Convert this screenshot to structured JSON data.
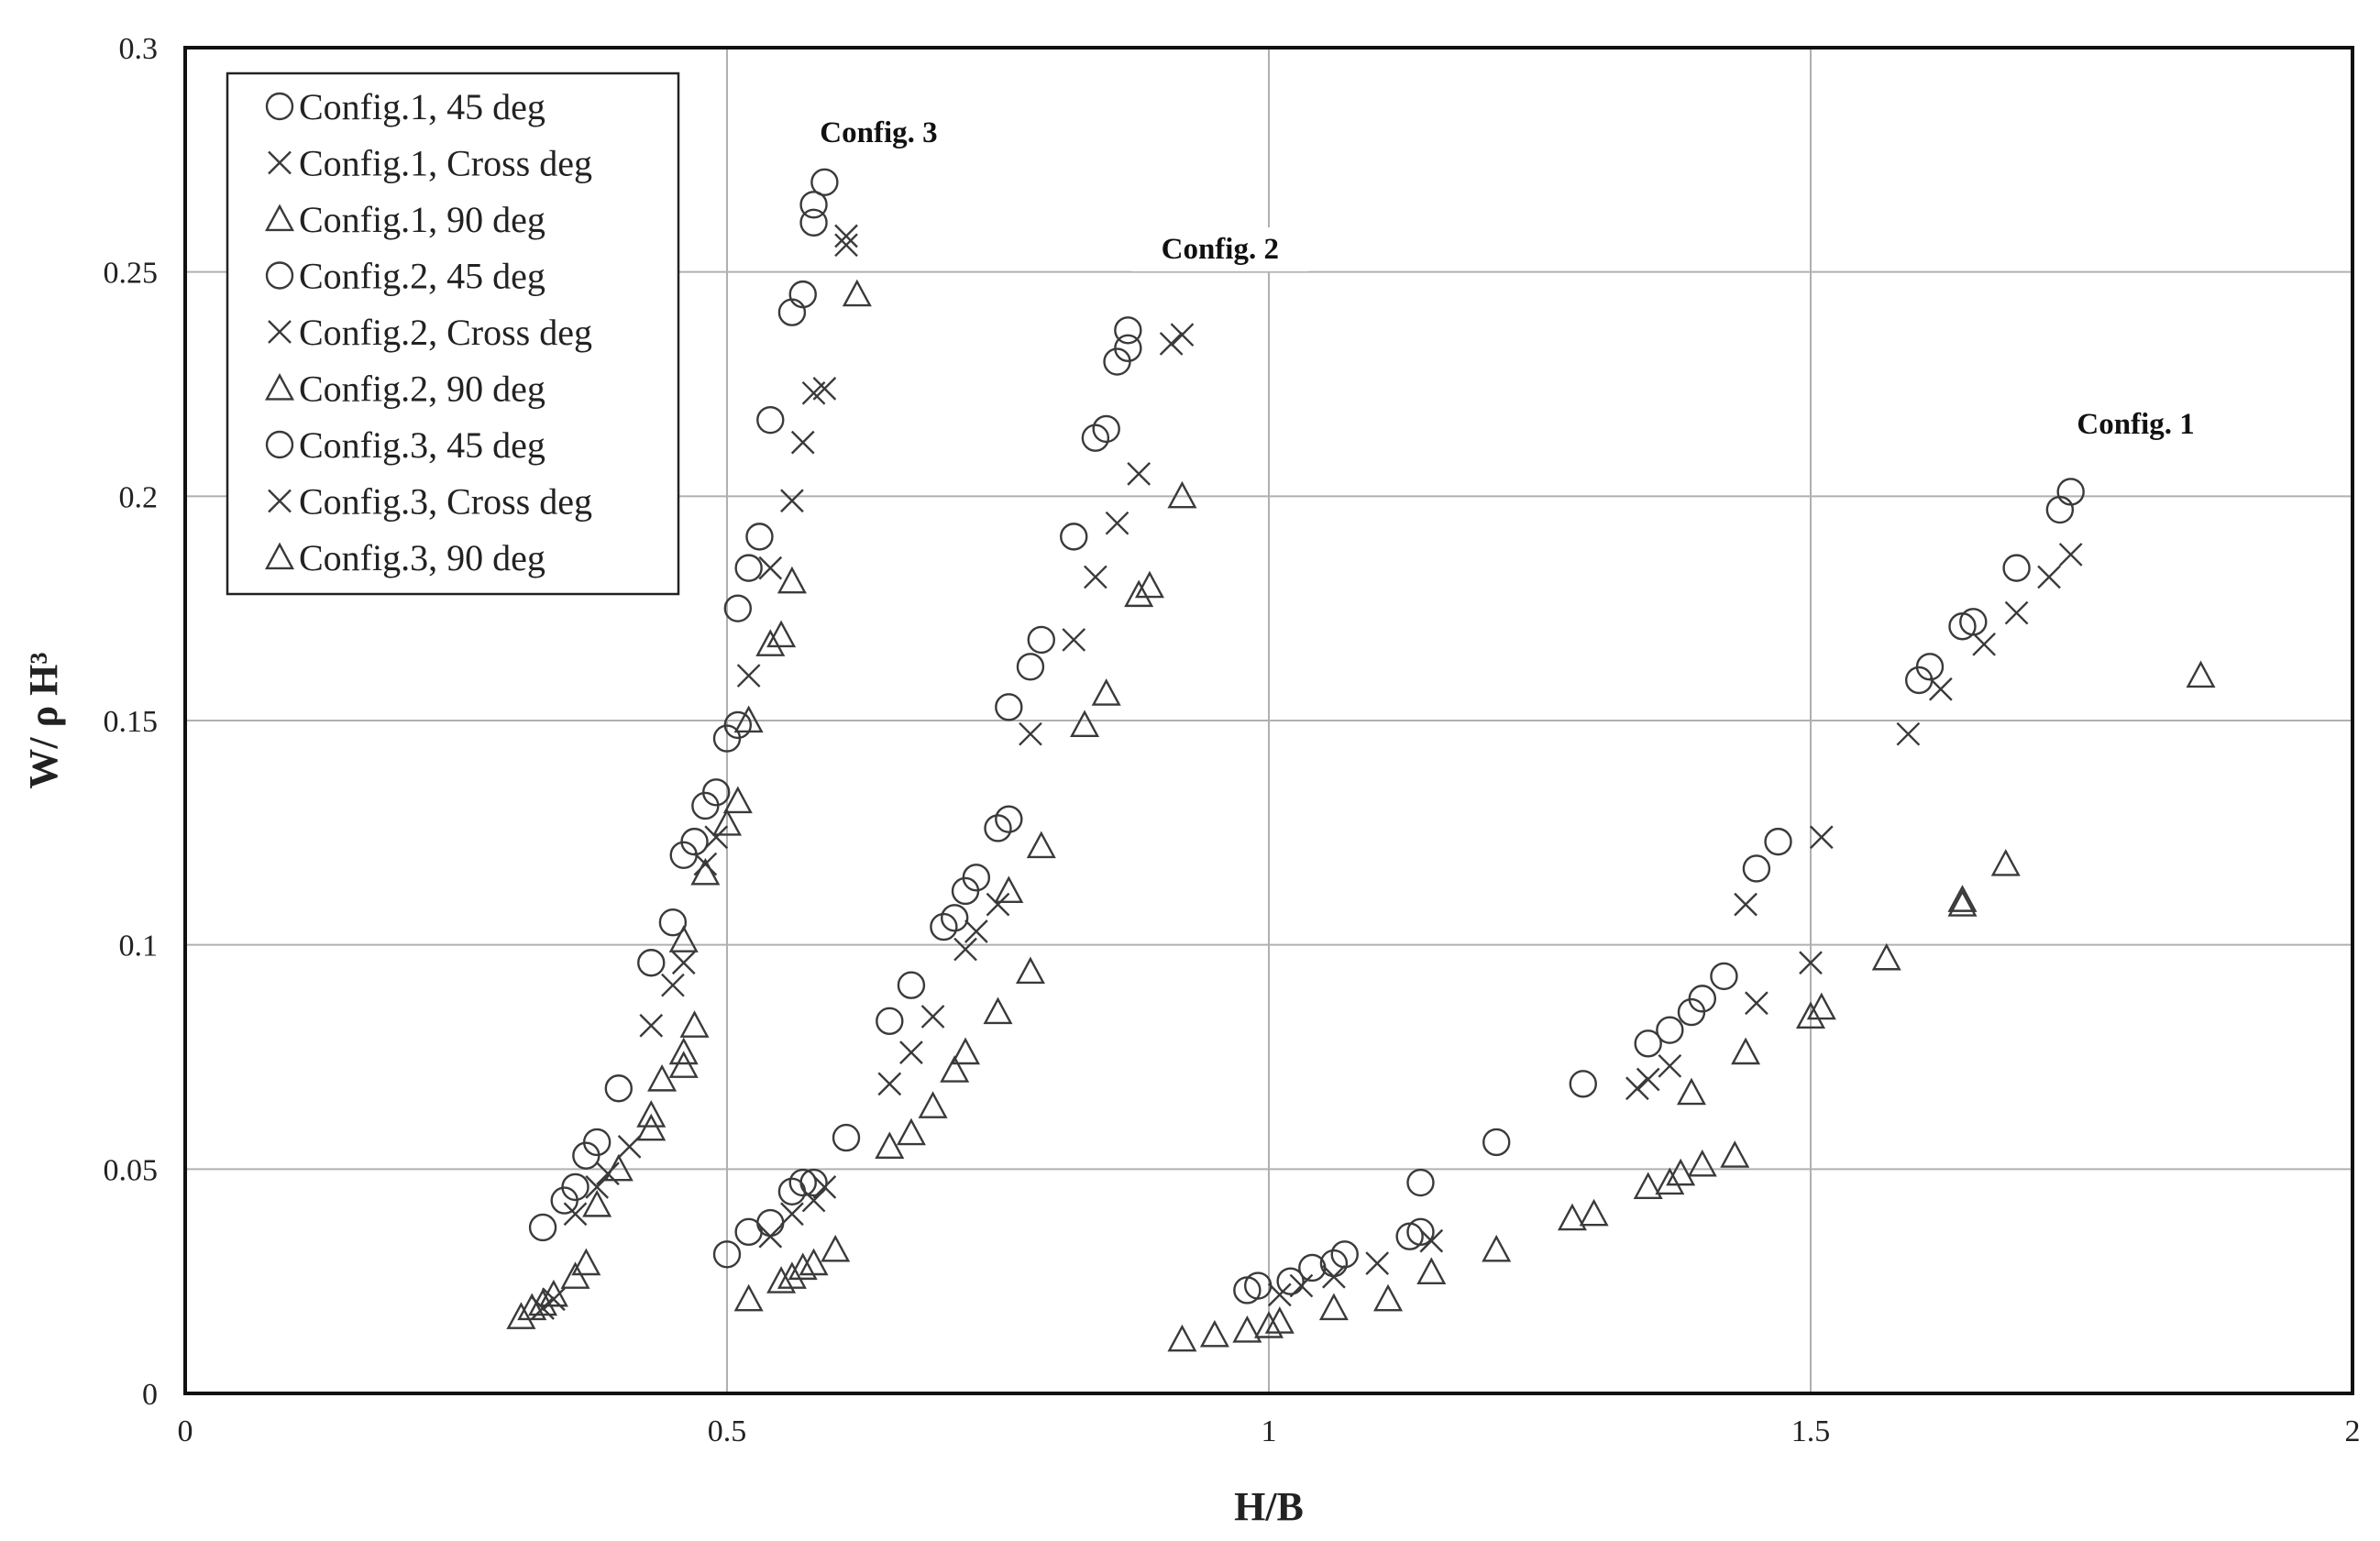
{
  "chart_data": {
    "type": "scatter",
    "title": "",
    "xlabel": "H/B",
    "ylabel": "W/ ρ H³",
    "xlim": [
      0,
      2
    ],
    "ylim": [
      0,
      0.3
    ],
    "x_ticks": [
      "0",
      "0.5",
      "1",
      "1.5",
      "2"
    ],
    "y_ticks": [
      "0",
      "0.05",
      "0.1",
      "0.15",
      "0.2",
      "0.25",
      "0.3"
    ],
    "grid": true,
    "legend_position": "top-left",
    "annotations": [
      {
        "text": "Config. 3",
        "x": 0.64,
        "y": 0.279
      },
      {
        "text": "Config. 2",
        "x": 0.955,
        "y": 0.253
      },
      {
        "text": "Config. 1",
        "x": 1.8,
        "y": 0.214
      }
    ],
    "series": [
      {
        "name": "Config.1, 45 deg",
        "marker": "circle",
        "points": [
          [
            0.98,
            0.023
          ],
          [
            0.99,
            0.024
          ],
          [
            1.02,
            0.025
          ],
          [
            1.04,
            0.028
          ],
          [
            1.06,
            0.029
          ],
          [
            1.07,
            0.031
          ],
          [
            1.13,
            0.035
          ],
          [
            1.14,
            0.036
          ],
          [
            1.14,
            0.047
          ],
          [
            1.21,
            0.056
          ],
          [
            1.29,
            0.069
          ],
          [
            1.35,
            0.078
          ],
          [
            1.37,
            0.081
          ],
          [
            1.39,
            0.085
          ],
          [
            1.4,
            0.088
          ],
          [
            1.42,
            0.093
          ],
          [
            1.45,
            0.117
          ],
          [
            1.47,
            0.123
          ],
          [
            1.6,
            0.159
          ],
          [
            1.61,
            0.162
          ],
          [
            1.64,
            0.171
          ],
          [
            1.65,
            0.172
          ],
          [
            1.69,
            0.184
          ],
          [
            1.73,
            0.197
          ],
          [
            1.74,
            0.201
          ]
        ]
      },
      {
        "name": "Config.1, Cross deg",
        "marker": "x",
        "points": [
          [
            1.01,
            0.022
          ],
          [
            1.03,
            0.024
          ],
          [
            1.06,
            0.026
          ],
          [
            1.1,
            0.029
          ],
          [
            1.15,
            0.034
          ],
          [
            1.34,
            0.068
          ],
          [
            1.35,
            0.07
          ],
          [
            1.37,
            0.073
          ],
          [
            1.44,
            0.109
          ],
          [
            1.45,
            0.087
          ],
          [
            1.5,
            0.096
          ],
          [
            1.51,
            0.124
          ],
          [
            1.59,
            0.147
          ],
          [
            1.62,
            0.157
          ],
          [
            1.66,
            0.167
          ],
          [
            1.69,
            0.174
          ],
          [
            1.72,
            0.182
          ],
          [
            1.74,
            0.187
          ]
        ]
      },
      {
        "name": "Config.1, 90 deg",
        "marker": "triangle",
        "points": [
          [
            0.92,
            0.012
          ],
          [
            0.95,
            0.013
          ],
          [
            0.98,
            0.014
          ],
          [
            1.0,
            0.015
          ],
          [
            1.01,
            0.016
          ],
          [
            1.06,
            0.019
          ],
          [
            1.11,
            0.021
          ],
          [
            1.15,
            0.027
          ],
          [
            1.21,
            0.032
          ],
          [
            1.28,
            0.039
          ],
          [
            1.3,
            0.04
          ],
          [
            1.35,
            0.046
          ],
          [
            1.37,
            0.047
          ],
          [
            1.38,
            0.049
          ],
          [
            1.4,
            0.051
          ],
          [
            1.43,
            0.053
          ],
          [
            1.39,
            0.067
          ],
          [
            1.44,
            0.076
          ],
          [
            1.5,
            0.084
          ],
          [
            1.51,
            0.086
          ],
          [
            1.57,
            0.097
          ],
          [
            1.64,
            0.109
          ],
          [
            1.64,
            0.11
          ],
          [
            1.68,
            0.118
          ],
          [
            1.86,
            0.16
          ]
        ]
      },
      {
        "name": "Config.2, 45 deg",
        "marker": "circle",
        "points": [
          [
            0.5,
            0.031
          ],
          [
            0.52,
            0.036
          ],
          [
            0.54,
            0.038
          ],
          [
            0.56,
            0.045
          ],
          [
            0.57,
            0.047
          ],
          [
            0.58,
            0.047
          ],
          [
            0.61,
            0.057
          ],
          [
            0.65,
            0.083
          ],
          [
            0.67,
            0.091
          ],
          [
            0.7,
            0.104
          ],
          [
            0.71,
            0.106
          ],
          [
            0.72,
            0.112
          ],
          [
            0.73,
            0.115
          ],
          [
            0.75,
            0.126
          ],
          [
            0.76,
            0.128
          ],
          [
            0.76,
            0.153
          ],
          [
            0.78,
            0.162
          ],
          [
            0.79,
            0.168
          ],
          [
            0.82,
            0.191
          ],
          [
            0.84,
            0.213
          ],
          [
            0.85,
            0.215
          ],
          [
            0.86,
            0.23
          ],
          [
            0.87,
            0.233
          ],
          [
            0.87,
            0.237
          ]
        ]
      },
      {
        "name": "Config.2, Cross deg",
        "marker": "x",
        "points": [
          [
            0.54,
            0.035
          ],
          [
            0.56,
            0.04
          ],
          [
            0.58,
            0.043
          ],
          [
            0.59,
            0.046
          ],
          [
            0.65,
            0.069
          ],
          [
            0.67,
            0.076
          ],
          [
            0.69,
            0.084
          ],
          [
            0.72,
            0.099
          ],
          [
            0.73,
            0.103
          ],
          [
            0.75,
            0.109
          ],
          [
            0.78,
            0.147
          ],
          [
            0.82,
            0.168
          ],
          [
            0.84,
            0.182
          ],
          [
            0.86,
            0.194
          ],
          [
            0.88,
            0.205
          ],
          [
            0.91,
            0.234
          ],
          [
            0.92,
            0.236
          ]
        ]
      },
      {
        "name": "Config.2, 90 deg",
        "marker": "triangle",
        "points": [
          [
            0.52,
            0.021
          ],
          [
            0.55,
            0.025
          ],
          [
            0.56,
            0.026
          ],
          [
            0.57,
            0.028
          ],
          [
            0.58,
            0.029
          ],
          [
            0.6,
            0.032
          ],
          [
            0.65,
            0.055
          ],
          [
            0.67,
            0.058
          ],
          [
            0.69,
            0.064
          ],
          [
            0.71,
            0.072
          ],
          [
            0.72,
            0.076
          ],
          [
            0.75,
            0.085
          ],
          [
            0.76,
            0.112
          ],
          [
            0.78,
            0.094
          ],
          [
            0.79,
            0.122
          ],
          [
            0.83,
            0.149
          ],
          [
            0.85,
            0.156
          ],
          [
            0.88,
            0.178
          ],
          [
            0.89,
            0.18
          ],
          [
            0.92,
            0.2
          ]
        ]
      },
      {
        "name": "Config.3, 45 deg",
        "marker": "circle",
        "points": [
          [
            0.33,
            0.037
          ],
          [
            0.35,
            0.043
          ],
          [
            0.36,
            0.046
          ],
          [
            0.37,
            0.053
          ],
          [
            0.38,
            0.056
          ],
          [
            0.4,
            0.068
          ],
          [
            0.43,
            0.096
          ],
          [
            0.45,
            0.105
          ],
          [
            0.46,
            0.12
          ],
          [
            0.47,
            0.123
          ],
          [
            0.48,
            0.131
          ],
          [
            0.49,
            0.134
          ],
          [
            0.5,
            0.146
          ],
          [
            0.51,
            0.149
          ],
          [
            0.51,
            0.175
          ],
          [
            0.52,
            0.184
          ],
          [
            0.53,
            0.191
          ],
          [
            0.54,
            0.217
          ],
          [
            0.56,
            0.241
          ],
          [
            0.57,
            0.245
          ],
          [
            0.58,
            0.261
          ],
          [
            0.58,
            0.265
          ],
          [
            0.59,
            0.27
          ]
        ]
      },
      {
        "name": "Config.3, Cross deg",
        "marker": "x",
        "points": [
          [
            0.33,
            0.019
          ],
          [
            0.34,
            0.021
          ],
          [
            0.36,
            0.04
          ],
          [
            0.38,
            0.046
          ],
          [
            0.39,
            0.049
          ],
          [
            0.41,
            0.055
          ],
          [
            0.43,
            0.082
          ],
          [
            0.45,
            0.091
          ],
          [
            0.46,
            0.096
          ],
          [
            0.48,
            0.118
          ],
          [
            0.49,
            0.124
          ],
          [
            0.52,
            0.16
          ],
          [
            0.54,
            0.184
          ],
          [
            0.56,
            0.199
          ],
          [
            0.57,
            0.212
          ],
          [
            0.58,
            0.223
          ],
          [
            0.59,
            0.224
          ],
          [
            0.61,
            0.256
          ],
          [
            0.61,
            0.258
          ]
        ]
      },
      {
        "name": "Config.3, 90 deg",
        "marker": "triangle",
        "points": [
          [
            0.31,
            0.017
          ],
          [
            0.32,
            0.019
          ],
          [
            0.33,
            0.02
          ],
          [
            0.34,
            0.022
          ],
          [
            0.36,
            0.026
          ],
          [
            0.37,
            0.029
          ],
          [
            0.38,
            0.042
          ],
          [
            0.4,
            0.05
          ],
          [
            0.43,
            0.059
          ],
          [
            0.43,
            0.062
          ],
          [
            0.44,
            0.07
          ],
          [
            0.46,
            0.073
          ],
          [
            0.46,
            0.076
          ],
          [
            0.47,
            0.082
          ],
          [
            0.46,
            0.101
          ],
          [
            0.48,
            0.116
          ],
          [
            0.5,
            0.127
          ],
          [
            0.51,
            0.132
          ],
          [
            0.52,
            0.15
          ],
          [
            0.54,
            0.167
          ],
          [
            0.55,
            0.169
          ],
          [
            0.56,
            0.181
          ],
          [
            0.62,
            0.245
          ]
        ]
      }
    ]
  }
}
